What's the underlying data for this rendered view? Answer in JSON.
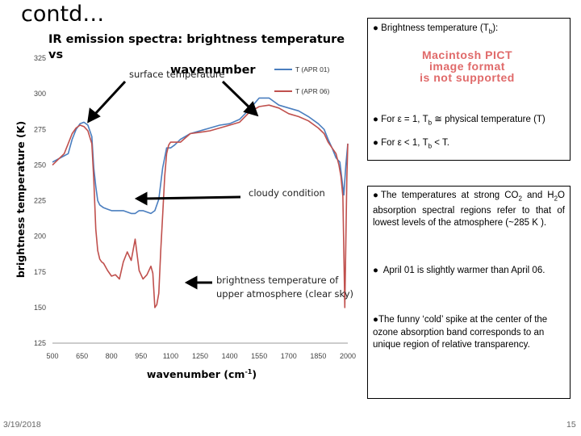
{
  "slide": {
    "title": "contd…",
    "date": "3/19/2018",
    "page_number": "15"
  },
  "chart_title_line1": "IR  emission spectra:  brightness temperature vs",
  "chart_title_line2": "wavenumber",
  "annotations": {
    "surface": "surface temperature",
    "cloudy": "cloudy condition",
    "upper1": "brightness temperature of",
    "upper2": "upper atmosphere (clear sky)"
  },
  "chart_data": {
    "type": "line",
    "xlabel": "wavenumber (cm",
    "xlabel_sup": "-1",
    "xlabel_end": ")",
    "ylabel": "brightness  temperature (K)",
    "xlim": [
      500,
      2000
    ],
    "ylim": [
      125,
      325
    ],
    "x_ticks": [
      500,
      650,
      800,
      950,
      1100,
      1250,
      1400,
      1550,
      1700,
      1850,
      2000
    ],
    "y_ticks": [
      125,
      150,
      175,
      200,
      225,
      250,
      275,
      300,
      325
    ],
    "legend": {
      "position": "top-right",
      "entries": [
        "T (APR 01)",
        "T (APR 06)"
      ]
    },
    "series": [
      {
        "name": "T (APR 01)",
        "color": "#4a7ebf",
        "x": [
          500,
          540,
          580,
          600,
          620,
          640,
          660,
          680,
          700,
          710,
          720,
          730,
          740,
          760,
          780,
          800,
          830,
          860,
          880,
          900,
          920,
          940,
          960,
          980,
          1000,
          1020,
          1040,
          1060,
          1080,
          1100,
          1120,
          1150,
          1200,
          1250,
          1300,
          1350,
          1400,
          1450,
          1500,
          1550,
          1600,
          1650,
          1700,
          1750,
          1800,
          1850,
          1880,
          1900,
          1920,
          1940,
          1960,
          1970,
          1980,
          1990,
          2000
        ],
        "y": [
          252,
          255,
          258,
          268,
          275,
          279,
          280,
          278,
          270,
          248,
          235,
          225,
          222,
          220,
          219,
          218,
          218,
          218,
          217,
          216,
          216,
          218,
          218,
          217,
          216,
          218,
          226,
          248,
          262,
          262,
          264,
          268,
          272,
          274,
          276,
          278,
          279,
          282,
          289,
          297,
          297,
          292,
          290,
          288,
          284,
          279,
          275,
          268,
          262,
          255,
          252,
          240,
          229,
          250,
          265
        ]
      },
      {
        "name": "T (APR 06)",
        "color": "#c0504d",
        "x": [
          500,
          530,
          560,
          580,
          600,
          620,
          640,
          660,
          680,
          700,
          710,
          720,
          730,
          740,
          750,
          760,
          780,
          800,
          820,
          840,
          860,
          880,
          900,
          920,
          940,
          960,
          980,
          1000,
          1010,
          1020,
          1030,
          1040,
          1050,
          1060,
          1070,
          1080,
          1090,
          1100,
          1120,
          1150,
          1200,
          1250,
          1300,
          1350,
          1400,
          1450,
          1500,
          1550,
          1600,
          1650,
          1700,
          1750,
          1800,
          1850,
          1880,
          1900,
          1920,
          1940,
          1955,
          1965,
          1975,
          1985,
          1995,
          2000
        ],
        "y": [
          250,
          254,
          258,
          265,
          272,
          276,
          278,
          277,
          274,
          265,
          240,
          205,
          190,
          184,
          182,
          181,
          176,
          172,
          173,
          170,
          182,
          189,
          183,
          198,
          176,
          170,
          173,
          179,
          174,
          150,
          152,
          160,
          190,
          215,
          242,
          258,
          264,
          266,
          266,
          266,
          272,
          273,
          274,
          276,
          278,
          280,
          287,
          291,
          292,
          290,
          286,
          284,
          281,
          276,
          272,
          266,
          262,
          258,
          250,
          242,
          228,
          150,
          240,
          265
        ]
      }
    ]
  },
  "info": {
    "item1_text": "Brightness temperature (T",
    "item1_sub": "b",
    "item1_end": "):",
    "pict_line1": "Macintosh PICT",
    "pict_line2": "image format",
    "pict_line3": "is not supported",
    "item2_text": "For ε = 1, T",
    "item2_sub": "b",
    "item2_end": " ≅ physical temperature (T)",
    "item3_text": "For ε < 1, T",
    "item3_sub": "b",
    "item3_end": " < T."
  },
  "notes": {
    "n1_a": "The temperatures at strong CO",
    "n1_sub1": "2",
    "n1_b": "  and H",
    "n1_sub2": "2",
    "n1_c": "O absorption spectral  regions refer to that of lowest levels of the atmosphere (~285 K ).",
    "n2": "April 01 is slightly warmer than April 06.",
    "n3": "The funny ‘cold’ spike at the center of the ozone absorption band corresponds to an unique region of relative transparency."
  },
  "bullet": "●"
}
